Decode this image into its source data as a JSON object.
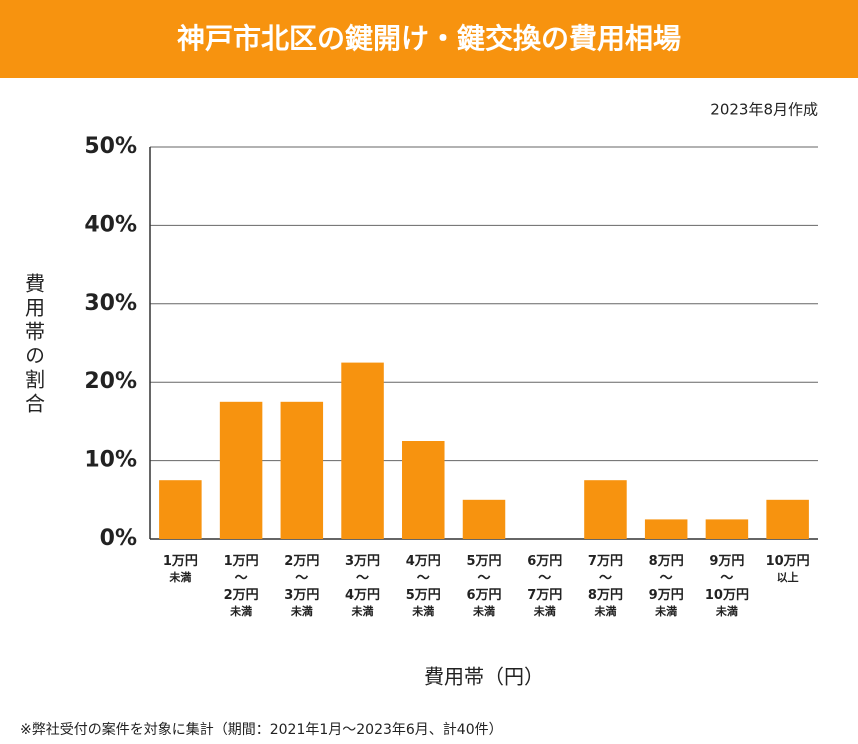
{
  "chart_data": {
    "type": "bar",
    "title": "神戸市北区の鍵開け・鍵交換の費用相場",
    "subtitle": "2023年8月作成",
    "y_label": "費用帯の割合",
    "x_label": "費用帯（円）",
    "note": "※弊社受付の案件を対象に集計（期間：2021年1月～2023年6月、計40件）",
    "categories": [
      "1万円\n未満",
      "1万円\n～\n2万円\n未満",
      "2万円\n～\n3万円\n未満",
      "3万円\n～\n4万円\n未満",
      "4万円\n～\n5万円\n未満",
      "5万円\n～\n6万円\n未満",
      "6万円\n～\n7万円\n未満",
      "7万円\n～\n8万円\n未満",
      "8万円\n～\n9万円\n未満",
      "9万円\n～\n10万円\n未満",
      "10万円\n以上"
    ],
    "values": [
      7.5,
      17.5,
      17.5,
      22.5,
      12.5,
      5,
      0,
      7.5,
      2.5,
      2.5,
      5
    ],
    "color": "#f7930f",
    "ylim": [
      0,
      50
    ],
    "yticks": [
      {
        "value": 0,
        "label": "0%"
      },
      {
        "value": 10,
        "label": "10%"
      },
      {
        "value": 20,
        "label": "20%"
      },
      {
        "value": 30,
        "label": "30%"
      },
      {
        "value": 40,
        "label": "40%"
      },
      {
        "value": 50,
        "label": "50%"
      }
    ],
    "grid": true
  }
}
